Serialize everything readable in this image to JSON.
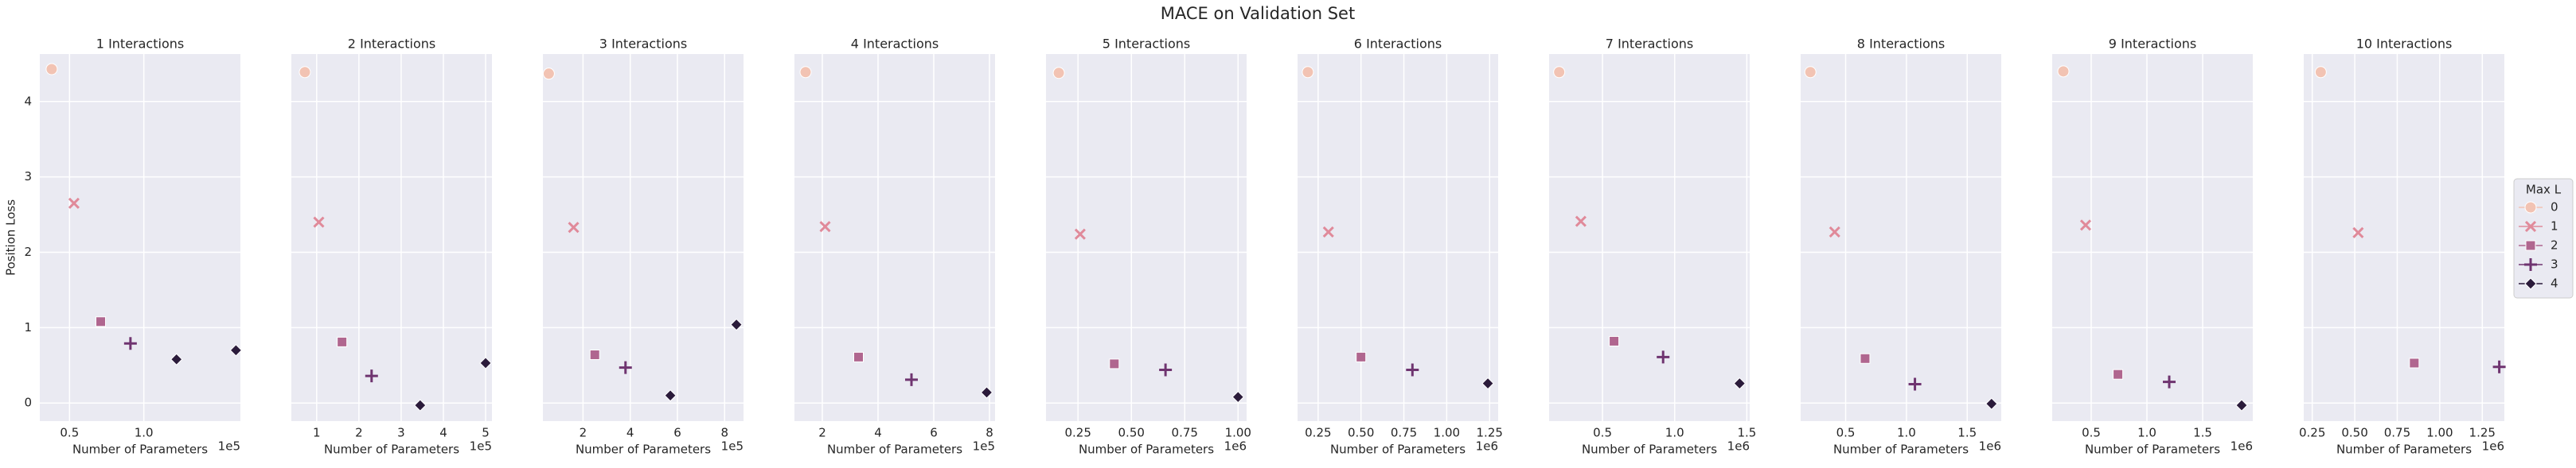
{
  "title": "MACE on Validation Set",
  "legend": {
    "title": "Max L",
    "loc": "center right"
  },
  "chart_data": [
    {
      "type": "scatter",
      "title": "1 Interactions",
      "xlabel": "Number of Parameters",
      "ylabel": "Position Loss",
      "x_offset_label": "1e5",
      "xlim": [
        30000,
        165000
      ],
      "xticks": [
        {
          "value": 50000,
          "label": "0.5"
        },
        {
          "value": 100000,
          "label": "1.0"
        }
      ],
      "ylim": [
        -0.24,
        4.63
      ],
      "yticks": [
        0,
        1,
        2,
        3,
        4
      ],
      "grid": true,
      "series": [
        {
          "name": "0",
          "color": "#f2c3b3",
          "marker": "o",
          "x": [
            38000
          ],
          "values": [
            4.43
          ]
        },
        {
          "name": "1",
          "color": "#e08a9a",
          "marker": "x",
          "x": [
            53000
          ],
          "values": [
            2.65
          ]
        },
        {
          "name": "2",
          "color": "#b0668f",
          "marker": "s",
          "x": [
            71000
          ],
          "values": [
            1.08
          ]
        },
        {
          "name": "3",
          "color": "#6f3470",
          "marker": "+",
          "x": [
            91000
          ],
          "values": [
            0.79
          ]
        },
        {
          "name": "4",
          "color": "#2b1b3b",
          "marker": "D",
          "x": [
            122000,
            162000
          ],
          "values": [
            0.58,
            0.7
          ]
        }
      ]
    },
    {
      "type": "scatter",
      "title": "2 Interactions",
      "xlabel": "Number of Parameters",
      "x_offset_label": "1e5",
      "xlim": [
        40000,
        515000
      ],
      "xticks": [
        {
          "value": 100000,
          "label": "1"
        },
        {
          "value": 200000,
          "label": "2"
        },
        {
          "value": 300000,
          "label": "3"
        },
        {
          "value": 400000,
          "label": "4"
        },
        {
          "value": 500000,
          "label": "5"
        }
      ],
      "ylim": [
        -0.24,
        4.63
      ],
      "yticks": [
        0,
        1,
        2,
        3,
        4
      ],
      "grid": true,
      "series": [
        {
          "name": "0",
          "color": "#f2c3b3",
          "marker": "o",
          "x": [
            72000
          ],
          "values": [
            4.39
          ]
        },
        {
          "name": "1",
          "color": "#e08a9a",
          "marker": "x",
          "x": [
            105000
          ],
          "values": [
            2.4
          ]
        },
        {
          "name": "2",
          "color": "#b0668f",
          "marker": "s",
          "x": [
            160000
          ],
          "values": [
            0.81
          ]
        },
        {
          "name": "3",
          "color": "#6f3470",
          "marker": "+",
          "x": [
            230000
          ],
          "values": [
            0.36
          ]
        },
        {
          "name": "4",
          "color": "#2b1b3b",
          "marker": "D",
          "x": [
            345000,
            500000
          ],
          "values": [
            -0.03,
            0.53
          ]
        }
      ]
    },
    {
      "type": "scatter",
      "title": "3 Interactions",
      "xlabel": "Number of Parameters",
      "x_offset_label": "1e5",
      "xlim": [
        30000,
        880000
      ],
      "xticks": [
        {
          "value": 200000,
          "label": "2"
        },
        {
          "value": 400000,
          "label": "4"
        },
        {
          "value": 600000,
          "label": "6"
        },
        {
          "value": 800000,
          "label": "8"
        }
      ],
      "ylim": [
        -0.24,
        4.63
      ],
      "yticks": [
        0,
        1,
        2,
        3,
        4
      ],
      "grid": true,
      "series": [
        {
          "name": "0",
          "color": "#f2c3b3",
          "marker": "o",
          "x": [
            55000
          ],
          "values": [
            4.37
          ]
        },
        {
          "name": "1",
          "color": "#e08a9a",
          "marker": "x",
          "x": [
            160000
          ],
          "values": [
            2.33
          ]
        },
        {
          "name": "2",
          "color": "#b0668f",
          "marker": "s",
          "x": [
            250000
          ],
          "values": [
            0.64
          ]
        },
        {
          "name": "3",
          "color": "#6f3470",
          "marker": "+",
          "x": [
            380000
          ],
          "values": [
            0.47
          ]
        },
        {
          "name": "4",
          "color": "#2b1b3b",
          "marker": "D",
          "x": [
            570000,
            850000
          ],
          "values": [
            0.1,
            1.04
          ]
        }
      ]
    },
    {
      "type": "scatter",
      "title": "4 Interactions",
      "xlabel": "Number of Parameters",
      "x_offset_label": "1e5",
      "xlim": [
        100000,
        820000
      ],
      "xticks": [
        {
          "value": 200000,
          "label": "2"
        },
        {
          "value": 400000,
          "label": "4"
        },
        {
          "value": 600000,
          "label": "6"
        },
        {
          "value": 800000,
          "label": "8"
        }
      ],
      "ylim": [
        -0.24,
        4.63
      ],
      "yticks": [
        0,
        1,
        2,
        3,
        4
      ],
      "grid": true,
      "series": [
        {
          "name": "0",
          "color": "#f2c3b3",
          "marker": "o",
          "x": [
            140000
          ],
          "values": [
            4.39
          ]
        },
        {
          "name": "1",
          "color": "#e08a9a",
          "marker": "x",
          "x": [
            210000
          ],
          "values": [
            2.34
          ]
        },
        {
          "name": "2",
          "color": "#b0668f",
          "marker": "s",
          "x": [
            330000
          ],
          "values": [
            0.61
          ]
        },
        {
          "name": "3",
          "color": "#6f3470",
          "marker": "+",
          "x": [
            520000
          ],
          "values": [
            0.31
          ]
        },
        {
          "name": "4",
          "color": "#2b1b3b",
          "marker": "D",
          "x": [
            790000
          ],
          "values": [
            0.14
          ]
        }
      ]
    },
    {
      "type": "scatter",
      "title": "5 Interactions",
      "xlabel": "Number of Parameters",
      "x_offset_label": "1e6",
      "xlim": [
        100000,
        1040000
      ],
      "xticks": [
        {
          "value": 250000,
          "label": "0.25"
        },
        {
          "value": 500000,
          "label": "0.50"
        },
        {
          "value": 750000,
          "label": "0.75"
        },
        {
          "value": 1000000,
          "label": "1.00"
        }
      ],
      "ylim": [
        -0.24,
        4.63
      ],
      "yticks": [
        0,
        1,
        2,
        3,
        4
      ],
      "grid": true,
      "series": [
        {
          "name": "0",
          "color": "#f2c3b3",
          "marker": "o",
          "x": [
            160000
          ],
          "values": [
            4.38
          ]
        },
        {
          "name": "1",
          "color": "#e08a9a",
          "marker": "x",
          "x": [
            260000
          ],
          "values": [
            2.24
          ]
        },
        {
          "name": "2",
          "color": "#b0668f",
          "marker": "s",
          "x": [
            420000
          ],
          "values": [
            0.52
          ]
        },
        {
          "name": "3",
          "color": "#6f3470",
          "marker": "+",
          "x": [
            660000
          ],
          "values": [
            0.44
          ]
        },
        {
          "name": "4",
          "color": "#2b1b3b",
          "marker": "D",
          "x": [
            1000000
          ],
          "values": [
            0.08
          ]
        }
      ]
    },
    {
      "type": "scatter",
      "title": "6 Interactions",
      "xlabel": "Number of Parameters",
      "x_offset_label": "1e6",
      "xlim": [
        130000,
        1300000
      ],
      "xticks": [
        {
          "value": 250000,
          "label": "0.25"
        },
        {
          "value": 500000,
          "label": "0.50"
        },
        {
          "value": 750000,
          "label": "0.75"
        },
        {
          "value": 1000000,
          "label": "1.00"
        },
        {
          "value": 1250000,
          "label": "1.25"
        }
      ],
      "ylim": [
        -0.24,
        4.63
      ],
      "yticks": [
        0,
        1,
        2,
        3,
        4
      ],
      "grid": true,
      "series": [
        {
          "name": "0",
          "color": "#f2c3b3",
          "marker": "o",
          "x": [
            190000
          ],
          "values": [
            4.39
          ]
        },
        {
          "name": "1",
          "color": "#e08a9a",
          "marker": "x",
          "x": [
            310000
          ],
          "values": [
            2.27
          ]
        },
        {
          "name": "2",
          "color": "#b0668f",
          "marker": "s",
          "x": [
            500000
          ],
          "values": [
            0.61
          ]
        },
        {
          "name": "3",
          "color": "#6f3470",
          "marker": "+",
          "x": [
            800000
          ],
          "values": [
            0.44
          ]
        },
        {
          "name": "4",
          "color": "#2b1b3b",
          "marker": "D",
          "x": [
            1240000
          ],
          "values": [
            0.26
          ]
        }
      ]
    },
    {
      "type": "scatter",
      "title": "7 Interactions",
      "xlabel": "Number of Parameters",
      "x_offset_label": "1e6",
      "xlim": [
        130000,
        1520000
      ],
      "xticks": [
        {
          "value": 500000,
          "label": "0.5"
        },
        {
          "value": 1000000,
          "label": "1.0"
        },
        {
          "value": 1500000,
          "label": "1.5"
        }
      ],
      "ylim": [
        -0.24,
        4.63
      ],
      "yticks": [
        0,
        1,
        2,
        3,
        4
      ],
      "grid": true,
      "series": [
        {
          "name": "0",
          "color": "#f2c3b3",
          "marker": "o",
          "x": [
            200000
          ],
          "values": [
            4.39
          ]
        },
        {
          "name": "1",
          "color": "#e08a9a",
          "marker": "x",
          "x": [
            350000
          ],
          "values": [
            2.41
          ]
        },
        {
          "name": "2",
          "color": "#b0668f",
          "marker": "s",
          "x": [
            580000
          ],
          "values": [
            0.82
          ]
        },
        {
          "name": "3",
          "color": "#6f3470",
          "marker": "+",
          "x": [
            920000
          ],
          "values": [
            0.61
          ]
        },
        {
          "name": "4",
          "color": "#2b1b3b",
          "marker": "D",
          "x": [
            1450000
          ],
          "values": [
            0.26
          ]
        }
      ]
    },
    {
      "type": "scatter",
      "title": "8 Interactions",
      "xlabel": "Number of Parameters",
      "x_offset_label": "1e6",
      "xlim": [
        130000,
        1780000
      ],
      "xticks": [
        {
          "value": 500000,
          "label": "0.5"
        },
        {
          "value": 1000000,
          "label": "1.0"
        },
        {
          "value": 1500000,
          "label": "1.5"
        }
      ],
      "ylim": [
        -0.24,
        4.63
      ],
      "yticks": [
        0,
        1,
        2,
        3,
        4
      ],
      "grid": true,
      "series": [
        {
          "name": "0",
          "color": "#f2c3b3",
          "marker": "o",
          "x": [
            210000
          ],
          "values": [
            4.39
          ]
        },
        {
          "name": "1",
          "color": "#e08a9a",
          "marker": "x",
          "x": [
            410000
          ],
          "values": [
            2.27
          ]
        },
        {
          "name": "2",
          "color": "#b0668f",
          "marker": "s",
          "x": [
            660000
          ],
          "values": [
            0.59
          ]
        },
        {
          "name": "3",
          "color": "#6f3470",
          "marker": "+",
          "x": [
            1070000
          ],
          "values": [
            0.25
          ]
        },
        {
          "name": "4",
          "color": "#2b1b3b",
          "marker": "D",
          "x": [
            1700000
          ],
          "values": [
            -0.01
          ]
        }
      ]
    },
    {
      "type": "scatter",
      "title": "9 Interactions",
      "xlabel": "Number of Parameters",
      "x_offset_label": "1e6",
      "xlim": [
        150000,
        1950000
      ],
      "xticks": [
        {
          "value": 500000,
          "label": "0.5"
        },
        {
          "value": 1000000,
          "label": "1.0"
        },
        {
          "value": 1500000,
          "label": "1.5"
        }
      ],
      "ylim": [
        -0.24,
        4.63
      ],
      "yticks": [
        0,
        1,
        2,
        3,
        4
      ],
      "grid": true,
      "series": [
        {
          "name": "0",
          "color": "#f2c3b3",
          "marker": "o",
          "x": [
            250000
          ],
          "values": [
            4.4
          ]
        },
        {
          "name": "1",
          "color": "#e08a9a",
          "marker": "x",
          "x": [
            450000
          ],
          "values": [
            2.36
          ]
        },
        {
          "name": "2",
          "color": "#b0668f",
          "marker": "s",
          "x": [
            740000
          ],
          "values": [
            0.38
          ]
        },
        {
          "name": "3",
          "color": "#6f3470",
          "marker": "+",
          "x": [
            1200000
          ],
          "values": [
            0.28
          ]
        },
        {
          "name": "4",
          "color": "#2b1b3b",
          "marker": "D",
          "x": [
            1850000
          ],
          "values": [
            -0.03
          ]
        }
      ]
    },
    {
      "type": "scatter",
      "title": "10 Interactions",
      "xlabel": "Number of Parameters",
      "x_offset_label": "1e6",
      "xlim": [
        200000,
        1380000
      ],
      "xticks": [
        {
          "value": 250000,
          "label": "0.25"
        },
        {
          "value": 500000,
          "label": "0.50"
        },
        {
          "value": 750000,
          "label": "0.75"
        },
        {
          "value": 1000000,
          "label": "1.00"
        },
        {
          "value": 1250000,
          "label": "1.25"
        }
      ],
      "ylim": [
        -0.24,
        4.63
      ],
      "yticks": [
        0,
        1,
        2,
        3,
        4
      ],
      "grid": true,
      "series": [
        {
          "name": "0",
          "color": "#f2c3b3",
          "marker": "o",
          "x": [
            300000
          ],
          "values": [
            4.39
          ]
        },
        {
          "name": "1",
          "color": "#e08a9a",
          "marker": "x",
          "x": [
            520000
          ],
          "values": [
            2.26
          ]
        },
        {
          "name": "2",
          "color": "#b0668f",
          "marker": "s",
          "x": [
            850000
          ],
          "values": [
            0.53
          ]
        },
        {
          "name": "3",
          "color": "#6f3470",
          "marker": "+",
          "x": [
            1350000
          ],
          "values": [
            0.48
          ]
        }
      ]
    }
  ]
}
